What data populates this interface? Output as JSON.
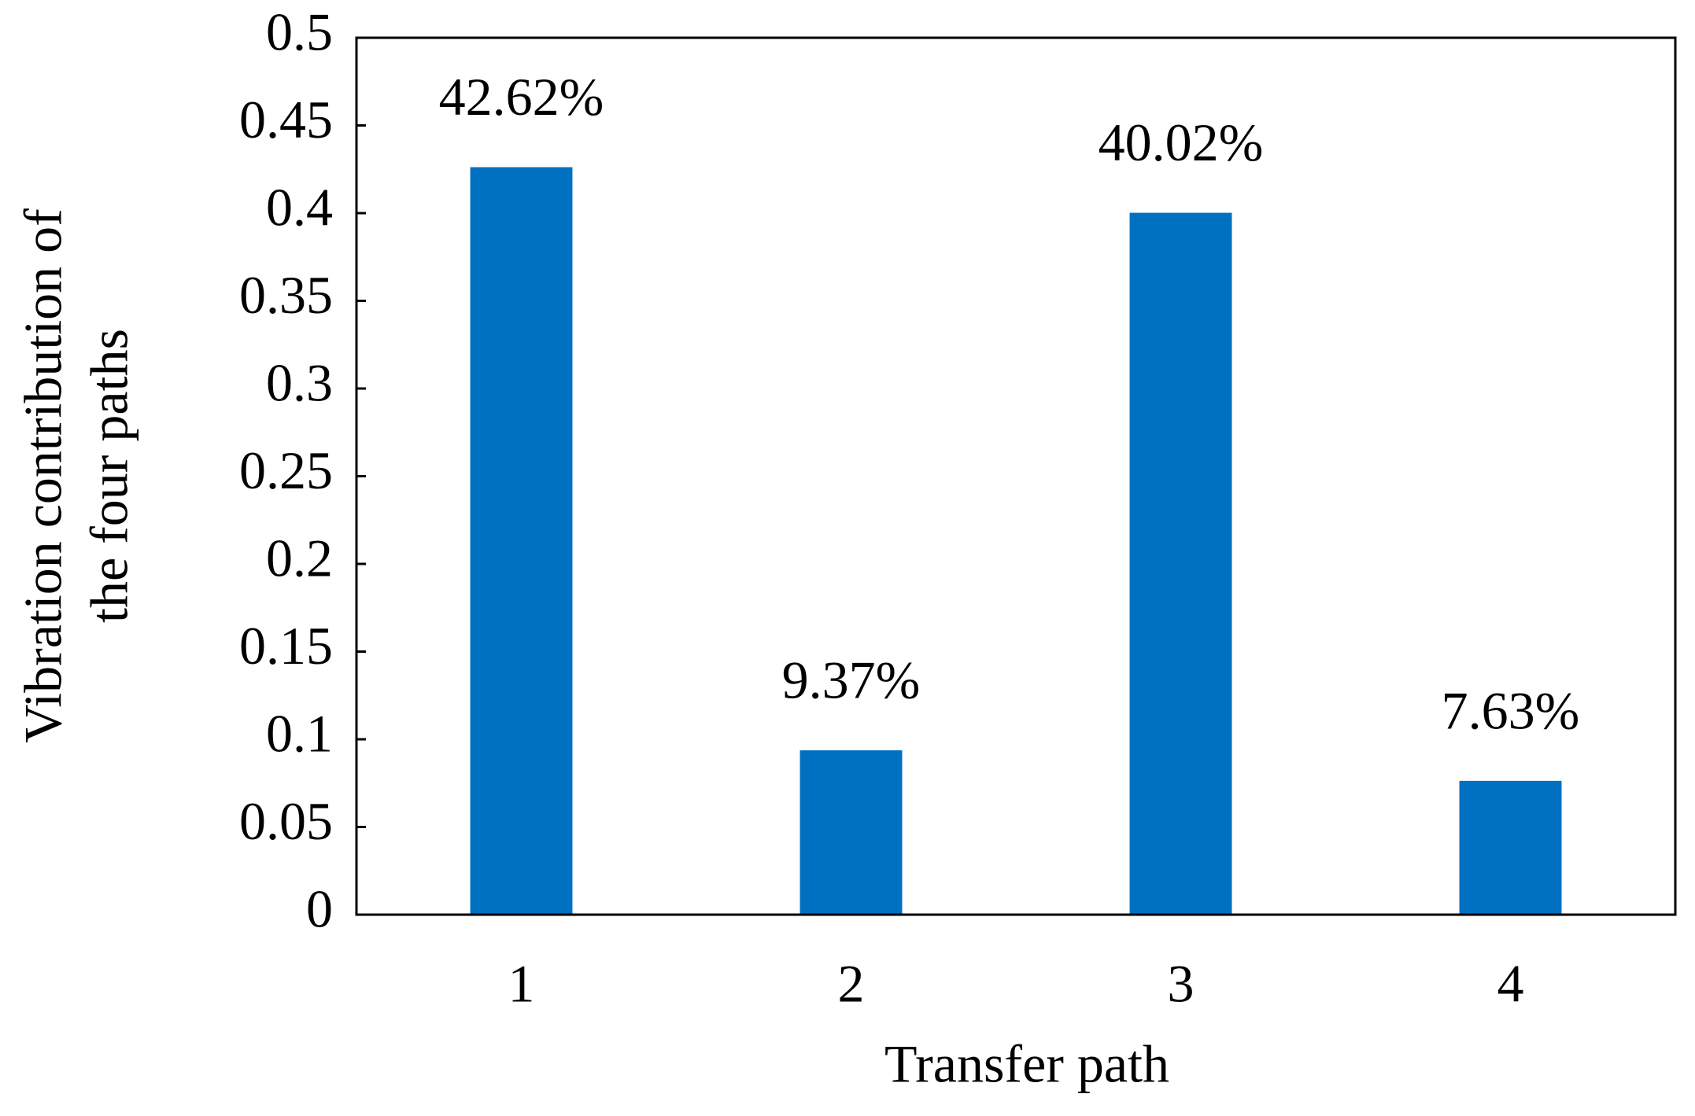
{
  "chart_data": {
    "type": "bar",
    "xlabel": "Transfer path",
    "ylabel": [
      "Vibration contribution of",
      "the four paths"
    ],
    "categories": [
      "1",
      "2",
      "3",
      "4"
    ],
    "values": [
      0.4262,
      0.0937,
      0.4002,
      0.0763
    ],
    "value_labels": [
      "42.62%",
      "9.37%",
      "40.02%",
      "7.63%"
    ],
    "color": "#0070c0",
    "ylim": [
      0,
      0.5
    ],
    "yticks": [
      0,
      0.05,
      0.1,
      0.15,
      0.2,
      0.25,
      0.3,
      0.35,
      0.4,
      0.45,
      0.5
    ],
    "grid": false
  }
}
